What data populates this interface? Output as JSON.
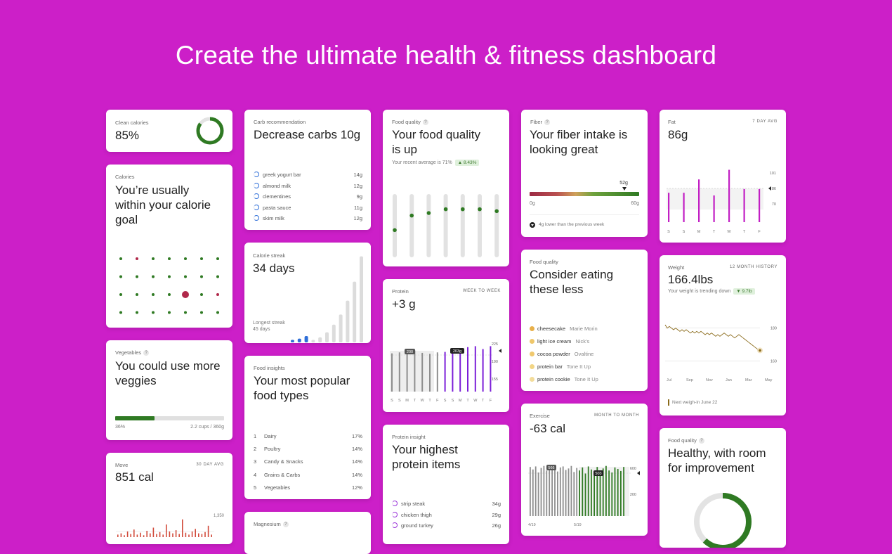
{
  "headline": "Create the ultimate health & fitness dashboard",
  "clean_calories": {
    "label": "Clean calories",
    "value": "85%",
    "percent": 85,
    "color": "#2f7a23"
  },
  "calories": {
    "label": "Calories",
    "title": "You’re usually within your calorie goal",
    "dot_grid": [
      [
        "g",
        "r",
        "g",
        "g",
        "g",
        "g",
        "g"
      ],
      [
        "g",
        "g",
        "g",
        "g",
        "g",
        "g",
        "g"
      ],
      [
        "g",
        "g",
        "g",
        "g",
        "R",
        "g",
        "r"
      ],
      [
        "g",
        "g",
        "g",
        "g",
        "g",
        "g",
        "g"
      ]
    ]
  },
  "vegetables": {
    "label": "Vegetables",
    "title": "You could use more veggies",
    "percent_label": "36%",
    "percent": 36,
    "amount": "2.2 cups / 360g"
  },
  "move": {
    "label": "Move",
    "tag": "30 DAY AVG",
    "value": "851 cal",
    "axis_label": "1,350",
    "bars": [
      4,
      6,
      3,
      9,
      5,
      12,
      4,
      7,
      3,
      10,
      6,
      15,
      5,
      8,
      4,
      20,
      9,
      6,
      11,
      5,
      28,
      7,
      4,
      9,
      13,
      6,
      5,
      8,
      18,
      4
    ]
  },
  "carb": {
    "label": "Carb recommendation",
    "title": "Decrease carbs 10g",
    "items": [
      {
        "name": "greek yogurt bar",
        "value": "14g"
      },
      {
        "name": "almond milk",
        "value": "12g"
      },
      {
        "name": "clementines",
        "value": "9g"
      },
      {
        "name": "pasta sauce",
        "value": "11g"
      },
      {
        "name": "skim milk",
        "value": "12g"
      }
    ]
  },
  "streak": {
    "label": "Calorie streak",
    "value": "34 days",
    "longest_label": "Longest streak",
    "longest_value": "45 days",
    "bars": [
      2,
      3,
      5,
      2,
      4,
      8,
      14,
      22,
      33,
      48,
      68
    ]
  },
  "insights": {
    "label": "Food insights",
    "title": "Your most popular food types",
    "items": [
      {
        "rank": "1",
        "name": "Dairy",
        "value": "17%"
      },
      {
        "rank": "2",
        "name": "Poultry",
        "value": "14%"
      },
      {
        "rank": "3",
        "name": "Candy & Snacks",
        "value": "14%"
      },
      {
        "rank": "4",
        "name": "Grains & Carbs",
        "value": "14%"
      },
      {
        "rank": "5",
        "name": "Vegetables",
        "value": "12%"
      }
    ]
  },
  "magnesium": {
    "label": "Magnesium"
  },
  "quality_up": {
    "label": "Food quality",
    "title": "Your food quality is up",
    "average": "Your recent average is 71%",
    "delta": "▲ 8.43%",
    "levels": [
      0.43,
      0.66,
      0.7,
      0.76,
      0.76,
      0.76,
      0.73
    ]
  },
  "protein": {
    "label": "Protein",
    "tag": "WEEK TO WEEK",
    "value": "+3 g",
    "callout_a": "200",
    "callout_b": "203g",
    "y_ticks": [
      "225",
      "190",
      "155"
    ],
    "days": [
      "S",
      "S",
      "M",
      "T",
      "W",
      "T",
      "F",
      "S",
      "S",
      "M",
      "T",
      "W",
      "T",
      "F"
    ],
    "week1": [
      0.8,
      0.82,
      0.8,
      0.86,
      0.81,
      0.79,
      0.82
    ],
    "week2": [
      0.83,
      0.86,
      0.9,
      0.93,
      0.95,
      0.89,
      0.95
    ]
  },
  "protein_items": {
    "label": "Protein insight",
    "title": "Your highest protein items",
    "items": [
      {
        "name": "strip steak",
        "value": "34g"
      },
      {
        "name": "chicken thigh",
        "value": "29g"
      },
      {
        "name": "ground turkey",
        "value": "26g"
      }
    ]
  },
  "fiber": {
    "label": "Fiber",
    "title": "Your fiber intake is looking great",
    "marker": "52g",
    "current": 52,
    "max": 60,
    "min_label": "0g",
    "max_label": "60g",
    "note": "4g lower than the previous week"
  },
  "eat_less": {
    "label": "Food quality",
    "title": "Consider eating these less",
    "items": [
      {
        "name": "cheesecake",
        "brand": "Marie Morin",
        "color": "#e8b04a"
      },
      {
        "name": "light ice cream",
        "brand": "Nick’s",
        "color": "#efc76a"
      },
      {
        "name": "cocoa powder",
        "brand": "Ovaltine",
        "color": "#f0c86e"
      },
      {
        "name": "protein bar",
        "brand": "Tone It Up",
        "color": "#f2d585"
      },
      {
        "name": "protein cookie",
        "brand": "Tone It Up",
        "color": "#f3dc9a"
      }
    ]
  },
  "exercise": {
    "label": "Exercise",
    "tag": "MONTH TO MONTH",
    "value": "-63 cal",
    "callout_a": "566",
    "callout_b": "503",
    "y_ticks": [
      "600",
      "200"
    ],
    "x_labels": [
      "4/19",
      "5/19"
    ],
    "month1": [
      0.97,
      0.92,
      0.98,
      0.86,
      0.95,
      0.99,
      0.9,
      0.97,
      0.93,
      1.0,
      0.88,
      0.96,
      0.98,
      0.91,
      0.94,
      0.99,
      0.87,
      0.95
    ],
    "month2": [
      0.9,
      0.96,
      0.84,
      0.98,
      0.92,
      0.88,
      0.97,
      0.85,
      0.94,
      0.99,
      0.9,
      0.86,
      0.96,
      0.93,
      0.89,
      0.97
    ]
  },
  "fat": {
    "label": "Fat",
    "tag": "7 DAY AVG",
    "value": "86g",
    "y_ticks": [
      "101",
      "86",
      "70"
    ],
    "days": [
      "S",
      "S",
      "M",
      "T",
      "W",
      "T",
      "F"
    ],
    "bars": [
      0.55,
      0.55,
      0.8,
      0.5,
      0.98,
      0.62,
      0.62
    ]
  },
  "weight": {
    "label": "Weight",
    "tag": "12 MONTH HISTORY",
    "value": "166.4lbs",
    "trend": "Your weight is trending down",
    "delta": "▼ 9.7lb",
    "y_ticks": [
      "180",
      "160"
    ],
    "x_labels": [
      "Jul",
      "Sep",
      "Nov",
      "Jan",
      "Mar",
      "May"
    ],
    "series": [
      182,
      180,
      181,
      180,
      179,
      180,
      179,
      178,
      179,
      178,
      179,
      178,
      177,
      178,
      177,
      178,
      177,
      178,
      177,
      176,
      177,
      176,
      177,
      176,
      175,
      176,
      175,
      176,
      177,
      176,
      175,
      176,
      175,
      174,
      175,
      176,
      175,
      174,
      173,
      172,
      171,
      170,
      169,
      168,
      167,
      166.4
    ],
    "next": "Next weigh-in June 22"
  },
  "quality_room": {
    "label": "Food quality",
    "title": "Healthy, with room for improvement",
    "percent": 62
  }
}
